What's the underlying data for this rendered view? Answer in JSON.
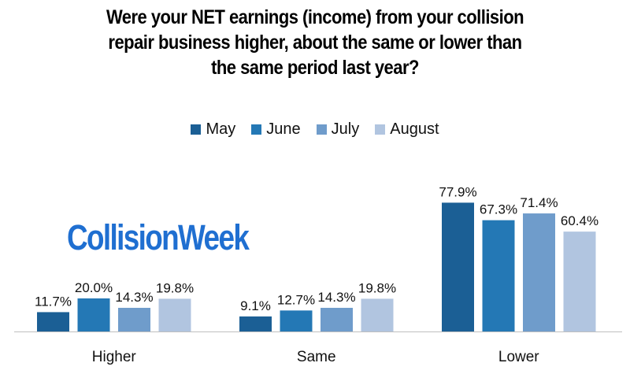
{
  "chart_data": {
    "type": "bar",
    "title_lines": [
      "Were your NET earnings (income) from your collision",
      "repair business higher, about the same or lower than",
      "the same period last year?"
    ],
    "categories": [
      "Higher",
      "Same",
      "Lower"
    ],
    "series": [
      {
        "name": "May",
        "color": "#1b5f95",
        "values": [
          11.7,
          9.1,
          77.9
        ],
        "labels": [
          "11.7%",
          "9.1%",
          "77.9%"
        ]
      },
      {
        "name": "June",
        "color": "#2478b5",
        "values": [
          20.0,
          12.7,
          67.3
        ],
        "labels": [
          "20.0%",
          "12.7%",
          "67.3%"
        ]
      },
      {
        "name": "July",
        "color": "#6f9ccb",
        "values": [
          14.3,
          14.3,
          71.4
        ],
        "labels": [
          "14.3%",
          "14.3%",
          "71.4%"
        ]
      },
      {
        "name": "August",
        "color": "#b1c5e0",
        "values": [
          19.8,
          19.8,
          60.4
        ],
        "labels": [
          "19.8%",
          "19.8%",
          "60.4%"
        ]
      }
    ],
    "ylim": [
      0,
      100
    ],
    "grid": false,
    "legend_position": "top-center"
  },
  "watermark": "CollisionWeek"
}
